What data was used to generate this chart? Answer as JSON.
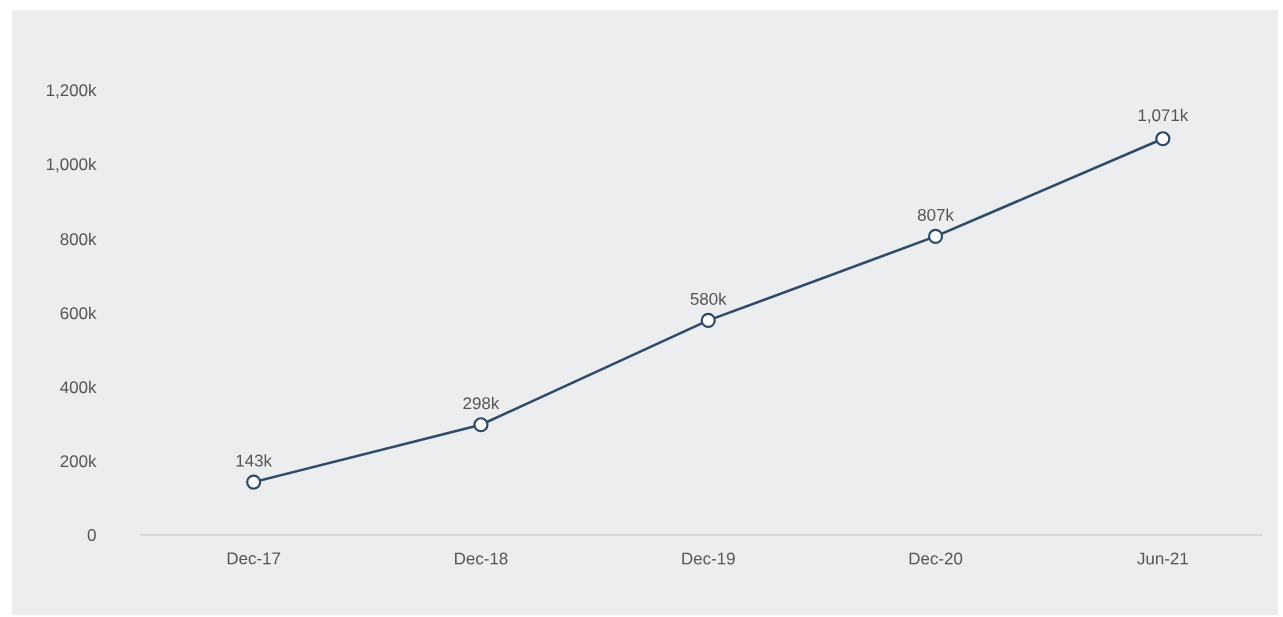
{
  "chart_data": {
    "type": "line",
    "categories": [
      "Dec-17",
      "Dec-18",
      "Dec-19",
      "Dec-20",
      "Jun-21"
    ],
    "values": [
      143,
      298,
      580,
      807,
      1071
    ],
    "value_labels": [
      "143k",
      "298k",
      "580k",
      "807k",
      "1,071k"
    ],
    "color": "#2e4a6b",
    "marker": "circle",
    "line_style": "solid",
    "ylim": [
      0,
      1200
    ],
    "yticks": [
      0,
      {
        "value": 200,
        "label": "200k"
      },
      {
        "value": 400,
        "label": "400k"
      },
      {
        "value": 600,
        "label": "600k"
      },
      {
        "value": 800,
        "label": "800k"
      },
      {
        "value": 1000,
        "label": "1,000k"
      },
      {
        "value": 1200,
        "label": "1,200k"
      }
    ]
  }
}
